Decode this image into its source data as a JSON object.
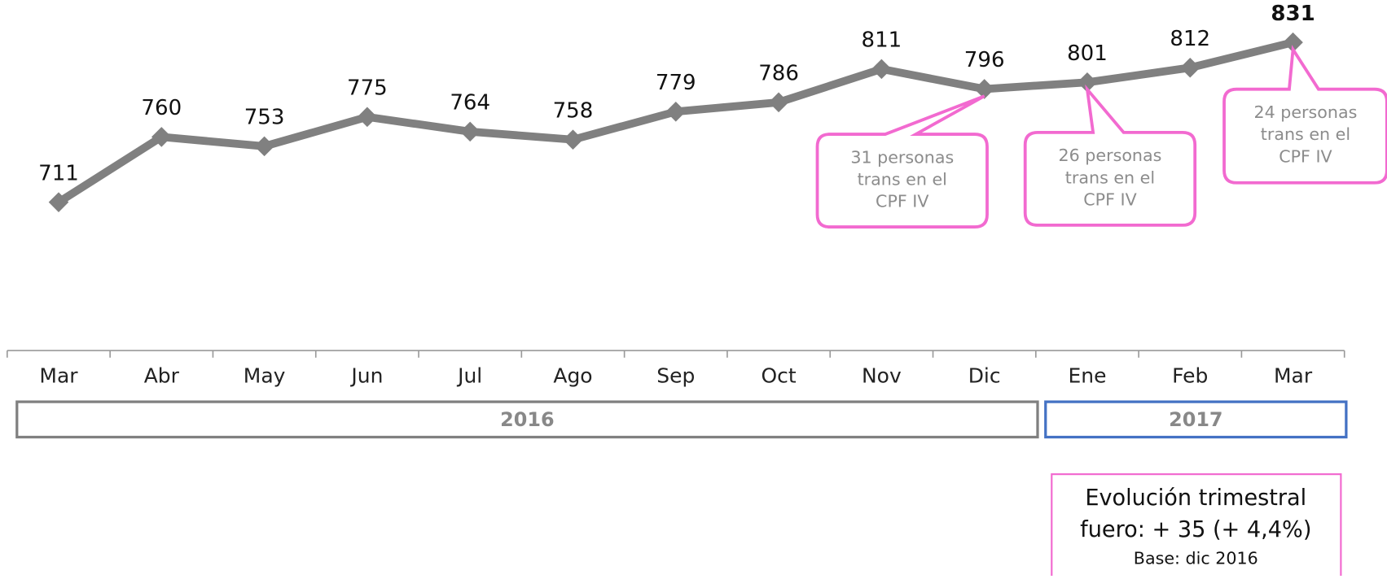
{
  "chart_data": {
    "type": "line",
    "categories": [
      "Mar",
      "Abr",
      "May",
      "Jun",
      "Jul",
      "Ago",
      "Sep",
      "Oct",
      "Nov",
      "Dic",
      "Ene",
      "Feb",
      "Mar"
    ],
    "values": [
      711,
      760,
      753,
      775,
      764,
      758,
      779,
      786,
      811,
      796,
      801,
      812,
      831
    ],
    "color": "#808080",
    "emphasize": "last",
    "groups": [
      {
        "label": "2016",
        "span": 10,
        "color": "#808080"
      },
      {
        "label": "2017",
        "span": 3,
        "color": "#4472c4"
      }
    ],
    "annotations": [
      {
        "point": 9,
        "lines": [
          "31 personas",
          "trans en el",
          "CPF IV"
        ]
      },
      {
        "point": 10,
        "lines": [
          "26 personas",
          "trans en el",
          "CPF IV"
        ]
      },
      {
        "point": 12,
        "lines": [
          "24 personas",
          "trans en el",
          "CPF IV"
        ]
      }
    ],
    "summary": {
      "lines": [
        "Evolución trimestral",
        "fuero: + 35 (+ 4,4%)"
      ],
      "note": "Base: dic 2016"
    }
  }
}
